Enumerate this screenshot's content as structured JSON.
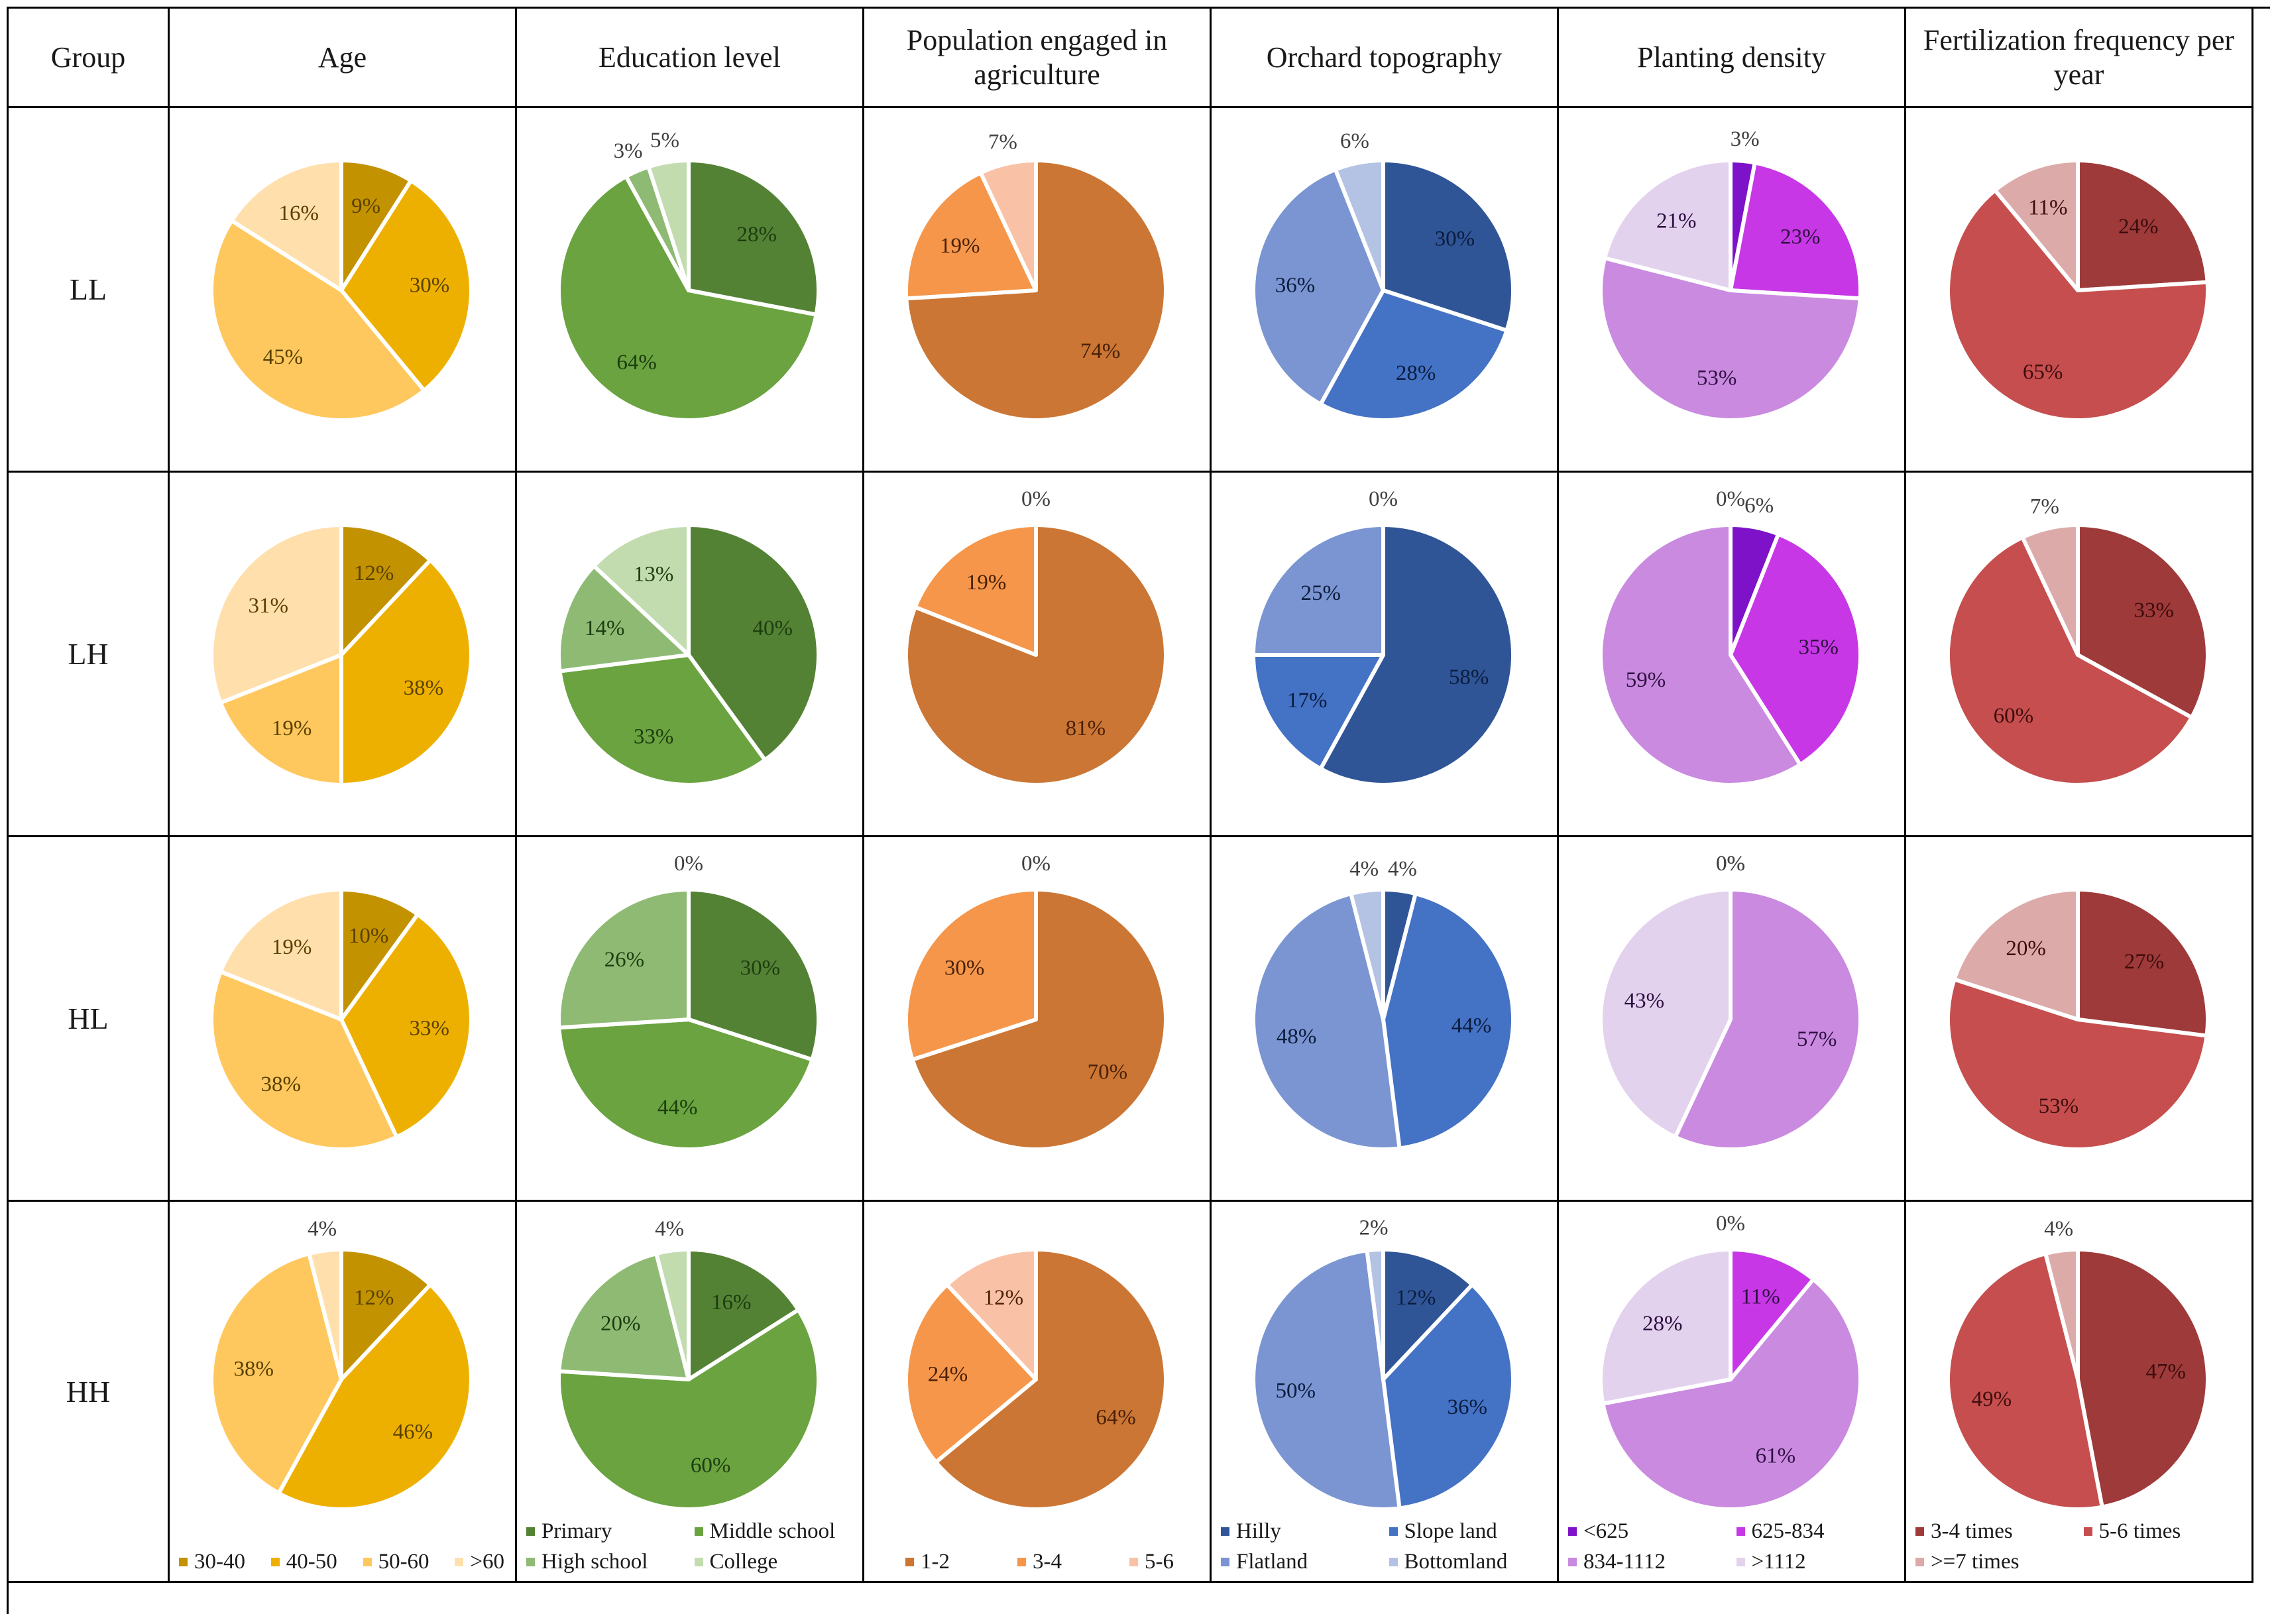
{
  "header": {
    "group": "Group",
    "age": "Age",
    "education": "Education level",
    "population": "Population engaged in agriculture",
    "topography": "Orchard topography",
    "density": "Planting density",
    "fertilization": "Fertilization frequency per year"
  },
  "groups": [
    "LL",
    "LH",
    "HL",
    "HH"
  ],
  "chart_data": [
    {
      "type": "pie",
      "title": "Age",
      "categories": [
        "30-40",
        "40-50",
        "50-60",
        ">60"
      ],
      "colors": [
        "#c39200",
        "#eeb000",
        "#ffc85e",
        "#ffe0ad"
      ],
      "label_colors": [
        "#5a4100",
        "#5a4100",
        "#5a4100",
        "#5a4100"
      ],
      "series": [
        {
          "name": "LL",
          "values": [
            9,
            30,
            45,
            16
          ]
        },
        {
          "name": "LH",
          "values": [
            12,
            38,
            19,
            31
          ]
        },
        {
          "name": "HL",
          "values": [
            10,
            33,
            38,
            19
          ]
        },
        {
          "name": "HH",
          "values": [
            12,
            46,
            38,
            4
          ]
        }
      ]
    },
    {
      "type": "pie",
      "title": "Education level",
      "categories": [
        "Primary",
        "Middle school",
        "High school",
        "College"
      ],
      "colors": [
        "#548235",
        "#6aa33f",
        "#8fba74",
        "#c2dcb0"
      ],
      "label_colors": [
        "#1d3d10",
        "#1d3d10",
        "#1d3d10",
        "#1d3d10"
      ],
      "series": [
        {
          "name": "LL",
          "values": [
            28,
            64,
            3,
            5
          ]
        },
        {
          "name": "LH",
          "values": [
            40,
            33,
            14,
            13
          ]
        },
        {
          "name": "HL",
          "values": [
            30,
            44,
            26,
            0
          ]
        },
        {
          "name": "HH",
          "values": [
            16,
            60,
            20,
            4
          ]
        }
      ]
    },
    {
      "type": "pie",
      "title": "Population engaged in agriculture",
      "categories": [
        "1-2",
        "3-4",
        "5-6"
      ],
      "colors": [
        "#cb7634",
        "#f5964a",
        "#f9c2a6"
      ],
      "label_colors": [
        "#4a2108",
        "#4a2108",
        "#4a2108"
      ],
      "series": [
        {
          "name": "LL",
          "values": [
            74,
            19,
            7
          ]
        },
        {
          "name": "LH",
          "values": [
            81,
            19,
            0
          ]
        },
        {
          "name": "HL",
          "values": [
            70,
            30,
            0
          ]
        },
        {
          "name": "HH",
          "values": [
            64,
            24,
            12
          ]
        }
      ]
    },
    {
      "type": "pie",
      "title": "Orchard topography",
      "categories": [
        "Hilly",
        "Slope land",
        "Flatland",
        "Bottomland"
      ],
      "colors": [
        "#2f5597",
        "#4472c4",
        "#7a95d1",
        "#b4c2e3"
      ],
      "label_colors": [
        "#0b1c3e",
        "#0b1c3e",
        "#0b1c3e",
        "#0b1c3e"
      ],
      "series": [
        {
          "name": "LL",
          "values": [
            30,
            28,
            36,
            6
          ]
        },
        {
          "name": "LH",
          "values": [
            58,
            17,
            25,
            0
          ]
        },
        {
          "name": "HL",
          "values": [
            4,
            44,
            48,
            4
          ]
        },
        {
          "name": "HH",
          "values": [
            12,
            36,
            50,
            2
          ]
        }
      ]
    },
    {
      "type": "pie",
      "title": "Planting density",
      "categories": [
        "<625",
        "625-834",
        "834-1112",
        ">1112"
      ],
      "colors": [
        "#7d12c9",
        "#c737e6",
        "#c98ae0",
        "#e3d2ee"
      ],
      "label_colors": [
        "#2e1040",
        "#2e1040",
        "#2e1040",
        "#2e1040"
      ],
      "series": [
        {
          "name": "LL",
          "values": [
            3,
            23,
            53,
            21
          ]
        },
        {
          "name": "LH",
          "values": [
            6,
            35,
            59,
            0
          ]
        },
        {
          "name": "HL",
          "values": [
            0,
            0,
            57,
            43
          ]
        },
        {
          "name": "HH",
          "values": [
            0,
            11,
            61,
            28
          ]
        }
      ]
    },
    {
      "type": "pie",
      "title": "Fertilization frequency per year",
      "categories": [
        "3-4 times",
        "5-6 times",
        ">=7 times"
      ],
      "colors": [
        "#9e3a3a",
        "#c64e4e",
        "#ddaaaa"
      ],
      "label_colors": [
        "#3d0d0d",
        "#3d0d0d",
        "#3d0d0d"
      ],
      "series": [
        {
          "name": "LL",
          "values": [
            24,
            65,
            11
          ]
        },
        {
          "name": "LH",
          "values": [
            33,
            60,
            7
          ]
        },
        {
          "name": "HL",
          "values": [
            27,
            53,
            20
          ]
        },
        {
          "name": "HH",
          "values": [
            47,
            49,
            4
          ]
        }
      ]
    }
  ]
}
